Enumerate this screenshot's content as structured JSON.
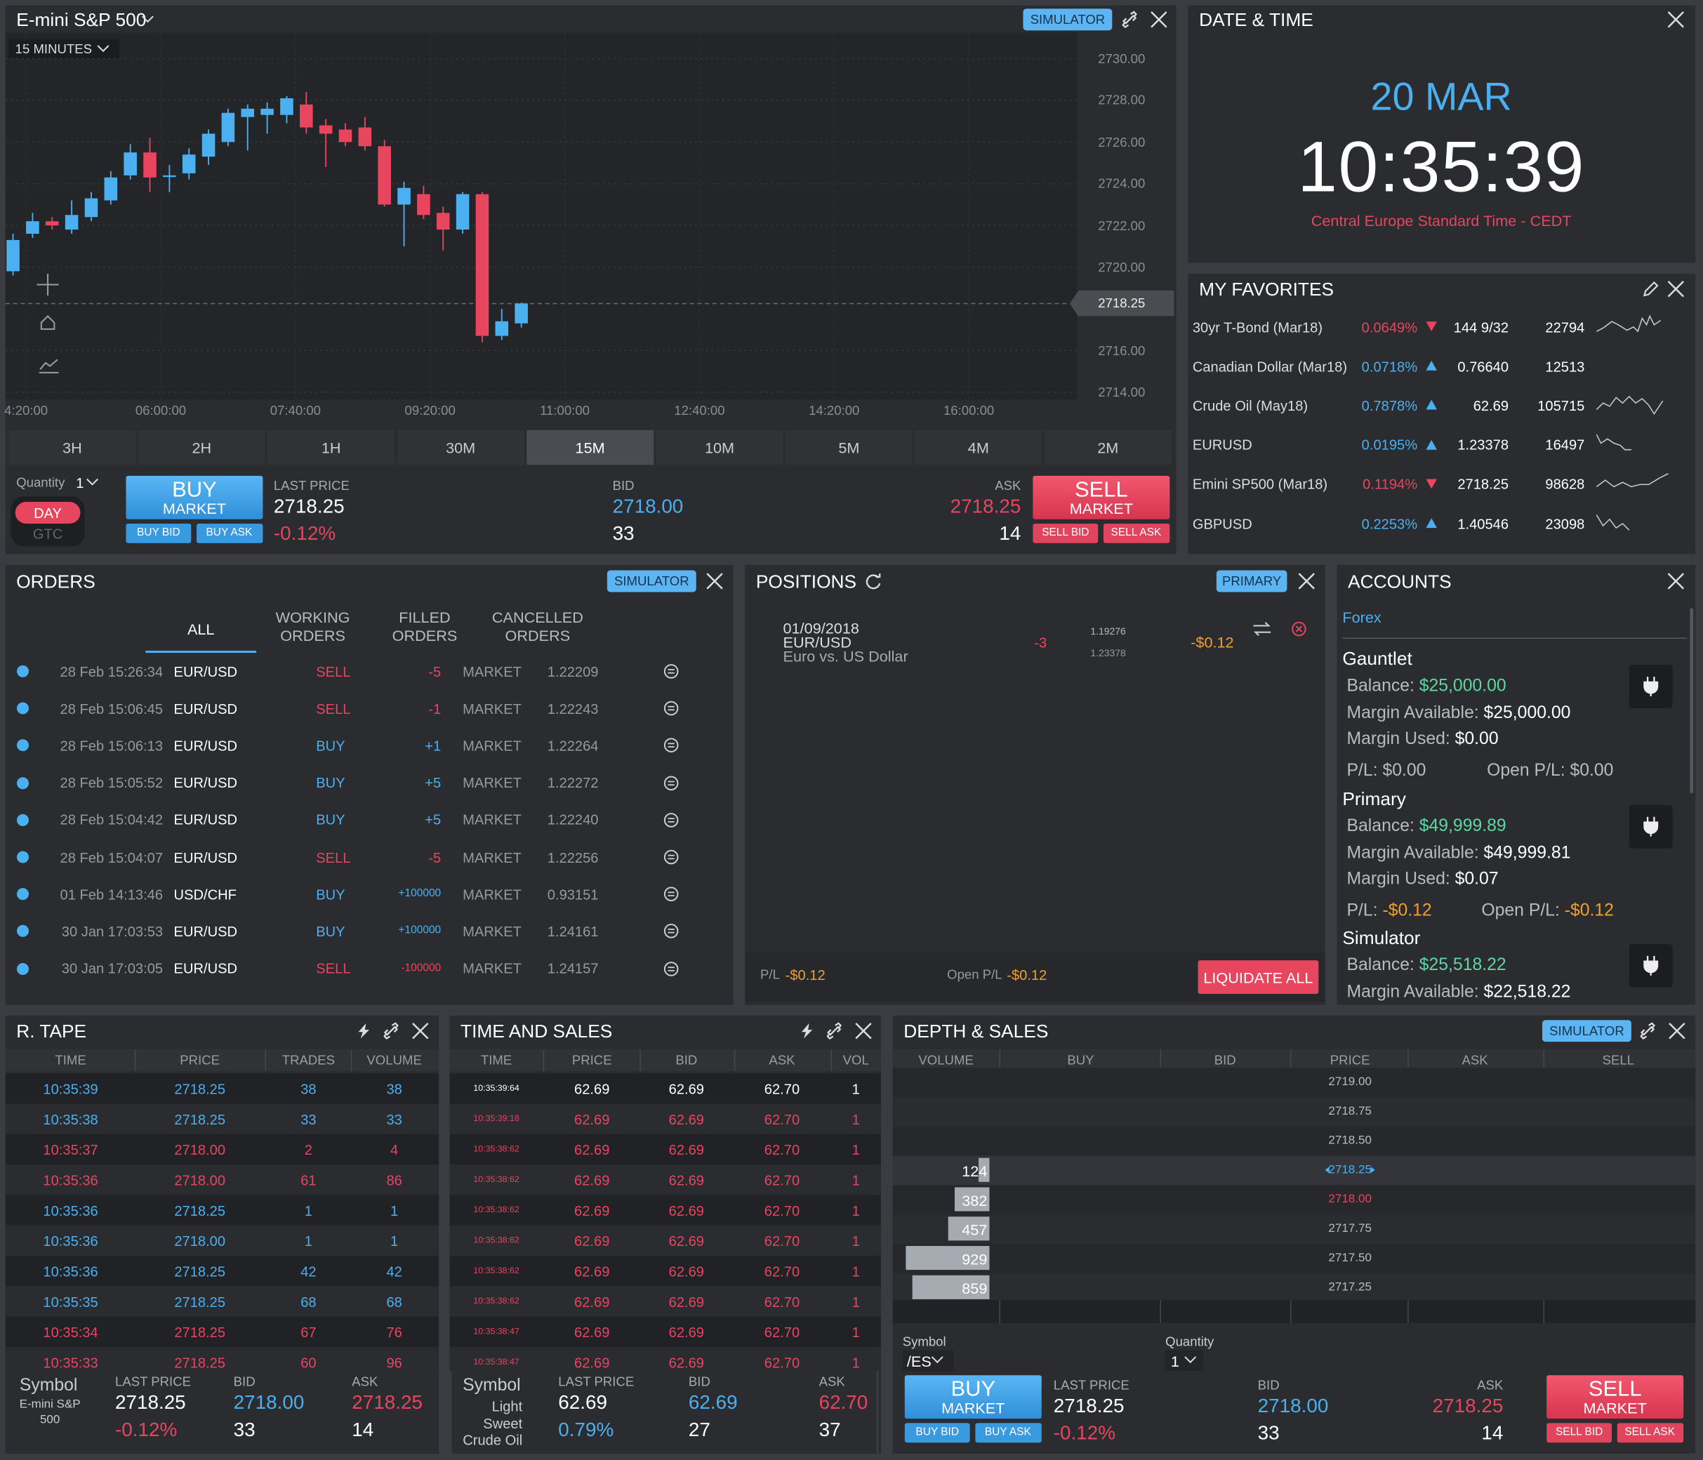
{
  "chart_panel": {
    "title": "E-mini S&P 500",
    "interval": "15 MINUTES",
    "badge": "SIMULATOR",
    "chart": {
      "type": "candlestick",
      "up_color": "#4ab0f0",
      "down_color": "#e8455f",
      "grid": true,
      "ylim": [
        2714,
        2730
      ],
      "yticks": [
        {
          "value": 2730,
          "label": "2730.00"
        },
        {
          "value": 2728,
          "label": "2728.00"
        },
        {
          "value": 2726,
          "label": "2726.00"
        },
        {
          "value": 2724,
          "label": "2724.00"
        },
        {
          "value": 2722,
          "label": "2722.00"
        },
        {
          "value": 2720,
          "label": "2720.00"
        },
        {
          "value": 2716,
          "label": "2716.00"
        },
        {
          "value": 2714,
          "label": "2714.00"
        }
      ],
      "last_price": {
        "value": 2718.25,
        "label": "2718.25"
      },
      "xticks": [
        "4:20:00",
        "06:00:00",
        "07:40:00",
        "09:20:00",
        "11:00:00",
        "12:40:00",
        "14:20:00",
        "16:00:00"
      ],
      "candles": [
        {
          "open": 2719.8,
          "high": 2721.6,
          "low": 2719.6,
          "close": 2721.3
        },
        {
          "open": 2721.6,
          "high": 2722.6,
          "low": 2721.4,
          "close": 2722.2
        },
        {
          "open": 2722.2,
          "high": 2722.4,
          "low": 2721.8,
          "close": 2722.0
        },
        {
          "open": 2721.8,
          "high": 2723.2,
          "low": 2721.6,
          "close": 2722.5
        },
        {
          "open": 2722.4,
          "high": 2723.6,
          "low": 2722.2,
          "close": 2723.3
        },
        {
          "open": 2723.2,
          "high": 2724.6,
          "low": 2723.0,
          "close": 2724.3
        },
        {
          "open": 2724.4,
          "high": 2725.9,
          "low": 2724.2,
          "close": 2725.5
        },
        {
          "open": 2725.5,
          "high": 2726.2,
          "low": 2723.6,
          "close": 2724.3
        },
        {
          "open": 2724.4,
          "high": 2724.9,
          "low": 2723.6,
          "close": 2724.4
        },
        {
          "open": 2724.5,
          "high": 2725.7,
          "low": 2724.2,
          "close": 2725.4
        },
        {
          "open": 2725.3,
          "high": 2726.6,
          "low": 2724.9,
          "close": 2726.4
        },
        {
          "open": 2726.0,
          "high": 2727.6,
          "low": 2725.8,
          "close": 2727.4
        },
        {
          "open": 2727.2,
          "high": 2727.8,
          "low": 2725.6,
          "close": 2727.6
        },
        {
          "open": 2727.3,
          "high": 2727.9,
          "low": 2726.4,
          "close": 2727.6
        },
        {
          "open": 2727.3,
          "high": 2728.2,
          "low": 2726.9,
          "close": 2728.1
        },
        {
          "open": 2727.8,
          "high": 2728.4,
          "low": 2726.4,
          "close": 2726.7
        },
        {
          "open": 2726.8,
          "high": 2727.1,
          "low": 2724.8,
          "close": 2726.4
        },
        {
          "open": 2726.6,
          "high": 2726.9,
          "low": 2725.8,
          "close": 2726.0
        },
        {
          "open": 2726.7,
          "high": 2727.2,
          "low": 2725.6,
          "close": 2725.8
        },
        {
          "open": 2725.8,
          "high": 2726.1,
          "low": 2722.9,
          "close": 2723.0
        },
        {
          "open": 2723.0,
          "high": 2724.1,
          "low": 2721.0,
          "close": 2723.8
        },
        {
          "open": 2723.5,
          "high": 2723.9,
          "low": 2722.3,
          "close": 2722.5
        },
        {
          "open": 2722.6,
          "high": 2722.9,
          "low": 2720.8,
          "close": 2721.8
        },
        {
          "open": 2721.8,
          "high": 2723.6,
          "low": 2721.6,
          "close": 2723.5
        },
        {
          "open": 2723.5,
          "high": 2723.6,
          "low": 2716.4,
          "close": 2716.7
        },
        {
          "open": 2716.7,
          "high": 2718.0,
          "low": 2716.5,
          "close": 2717.4
        },
        {
          "open": 2717.3,
          "high": 2718.3,
          "low": 2717.1,
          "close": 2718.25
        }
      ]
    },
    "timeframes": [
      "3H",
      "2H",
      "1H",
      "30M",
      "15M",
      "10M",
      "5M",
      "4M",
      "2M"
    ],
    "selected_timeframe": 4,
    "quantity_label": "Quantity",
    "quantity": "1",
    "tif": [
      "DAY",
      "GTC"
    ],
    "trade": {
      "buy": "BUY",
      "buy_type": "MARKET",
      "buy_bid": "BUY BID",
      "buy_ask": "BUY ASK",
      "last_price_label": "LAST PRICE",
      "last_price": "2718.25",
      "change": "-0.12%",
      "change_color": "#e8455f",
      "bid_label": "BID",
      "bid": "2718.00",
      "bid_size": "33",
      "ask_label": "ASK",
      "ask": "2718.25",
      "ask_size": "14",
      "sell": "SELL",
      "sell_type": "MARKET",
      "sell_bid": "SELL BID",
      "sell_ask": "SELL ASK"
    }
  },
  "date_time": {
    "title": "DATE & TIME",
    "date": "20 MAR",
    "time": "10:35:39",
    "timezone": "Central Europe Standard Time - CEDT"
  },
  "favorites": {
    "title": "MY FAVORITES",
    "rows": [
      {
        "name": "30yr T-Bond (Mar18)",
        "change": "0.0649%",
        "dir": "down",
        "price": "144 9/32",
        "volume": "22794"
      },
      {
        "name": "Canadian Dollar (Mar18)",
        "change": "0.0718%",
        "dir": "up",
        "price": "0.76640",
        "volume": "12513"
      },
      {
        "name": "Crude Oil (May18)",
        "change": "0.7878%",
        "dir": "up",
        "price": "62.69",
        "volume": "105715"
      },
      {
        "name": "EURUSD",
        "change": "0.0195%",
        "dir": "up",
        "price": "1.23378",
        "volume": "16497"
      },
      {
        "name": "Emini SP500 (Mar18)",
        "change": "0.1194%",
        "dir": "down",
        "price": "2718.25",
        "volume": "98628"
      },
      {
        "name": "GBPUSD",
        "change": "0.2253%",
        "dir": "up",
        "price": "1.40546",
        "volume": "23098"
      }
    ]
  },
  "orders": {
    "title": "ORDERS",
    "badge": "SIMULATOR",
    "tabs": [
      "ALL",
      "WORKING ORDERS",
      "FILLED ORDERS",
      "CANCELLED ORDERS"
    ],
    "selected_tab": 0,
    "rows": [
      {
        "time": "28 Feb 15:26:34",
        "symbol": "EUR/USD",
        "side": "SELL",
        "qty": "-5",
        "type": "MARKET",
        "price": "1.22209",
        "color": "#e8455f"
      },
      {
        "time": "28 Feb 15:06:45",
        "symbol": "EUR/USD",
        "side": "SELL",
        "qty": "-1",
        "type": "MARKET",
        "price": "1.22243",
        "color": "#e8455f"
      },
      {
        "time": "28 Feb 15:06:13",
        "symbol": "EUR/USD",
        "side": "BUY",
        "qty": "+1",
        "type": "MARKET",
        "price": "1.22264",
        "color": "#4ab0f0"
      },
      {
        "time": "28 Feb 15:05:52",
        "symbol": "EUR/USD",
        "side": "BUY",
        "qty": "+5",
        "type": "MARKET",
        "price": "1.22272",
        "color": "#4ab0f0"
      },
      {
        "time": "28 Feb 15:04:42",
        "symbol": "EUR/USD",
        "side": "BUY",
        "qty": "+5",
        "type": "MARKET",
        "price": "1.22240",
        "color": "#4ab0f0"
      },
      {
        "time": "28 Feb 15:04:07",
        "symbol": "EUR/USD",
        "side": "SELL",
        "qty": "-5",
        "type": "MARKET",
        "price": "1.22256",
        "color": "#e8455f"
      },
      {
        "time": "01 Feb 14:13:46",
        "symbol": "USD/CHF",
        "side": "BUY",
        "qty": "+100000",
        "type": "MARKET",
        "price": "0.93151",
        "color": "#4ab0f0"
      },
      {
        "time": "30 Jan 17:03:53",
        "symbol": "EUR/USD",
        "side": "BUY",
        "qty": "+100000",
        "type": "MARKET",
        "price": "1.24161",
        "color": "#4ab0f0"
      },
      {
        "time": "30 Jan 17:03:05",
        "symbol": "EUR/USD",
        "side": "SELL",
        "qty": "-100000",
        "type": "MARKET",
        "price": "1.24157",
        "color": "#e8455f"
      }
    ]
  },
  "positions": {
    "title": "POSITIONS",
    "badge": "PRIMARY",
    "row": {
      "date": "01/09/2018",
      "symbol": "EUR/USD",
      "description": "Euro vs. US Dollar",
      "qty": "-3",
      "open_price": "1.19276",
      "current_price": "1.23378",
      "pl": "-$0.12"
    },
    "footer": {
      "pl_label": "P/L",
      "pl": "-$0.12",
      "open_pl_label": "Open P/L",
      "open_pl": "-$0.12",
      "liquidate": "LIQUIDATE ALL"
    }
  },
  "accounts": {
    "title": "ACCOUNTS",
    "tab": "Forex",
    "list": [
      {
        "name": "Gauntlet",
        "fields": [
          {
            "label": "Balance:",
            "value": "$25,000.00",
            "color": "#5ed8a0"
          },
          {
            "label": "Margin Available:",
            "value": "$25,000.00",
            "color": "#ffffff"
          },
          {
            "label": "Margin Used:",
            "value": "$0.00",
            "color": "#ffffff"
          }
        ],
        "pl": {
          "label": "P/L:",
          "value": "$0.00",
          "color": "#bbbbbb"
        },
        "open_pl": {
          "label": "Open P/L:",
          "value": "$0.00",
          "color": "#bbbbbb"
        }
      },
      {
        "name": "Primary",
        "fields": [
          {
            "label": "Balance:",
            "value": "$49,999.89",
            "color": "#5ed8a0"
          },
          {
            "label": "Margin Available:",
            "value": "$49,999.81",
            "color": "#ffffff"
          },
          {
            "label": "Margin Used:",
            "value": "$0.07",
            "color": "#ffffff"
          }
        ],
        "pl": {
          "label": "P/L:",
          "value": "-$0.12",
          "color": "#f0a030"
        },
        "open_pl": {
          "label": "Open P/L:",
          "value": "-$0.12",
          "color": "#f0a030"
        }
      },
      {
        "name": "Simulator",
        "fields": [
          {
            "label": "Balance:",
            "value": "$25,518.22",
            "color": "#5ed8a0"
          },
          {
            "label": "Margin Available:",
            "value": "$22,518.22",
            "color": "#ffffff"
          }
        ]
      }
    ]
  },
  "r_tape": {
    "title": "R. TAPE",
    "columns": [
      "TIME",
      "PRICE",
      "TRADES",
      "VOLUME"
    ],
    "rows": [
      {
        "cells": [
          "10:35:39",
          "2718.25",
          "38",
          "38"
        ],
        "color": "#4ab0f0"
      },
      {
        "cells": [
          "10:35:38",
          "2718.25",
          "33",
          "33"
        ],
        "color": "#4ab0f0"
      },
      {
        "cells": [
          "10:35:37",
          "2718.00",
          "2",
          "4"
        ],
        "color": "#e8455f"
      },
      {
        "cells": [
          "10:35:36",
          "2718.00",
          "61",
          "86"
        ],
        "color": "#e8455f"
      },
      {
        "cells": [
          "10:35:36",
          "2718.25",
          "1",
          "1"
        ],
        "color": "#4ab0f0"
      },
      {
        "cells": [
          "10:35:36",
          "2718.00",
          "1",
          "1"
        ],
        "color": "#4ab0f0"
      },
      {
        "cells": [
          "10:35:36",
          "2718.25",
          "42",
          "42"
        ],
        "color": "#4ab0f0"
      },
      {
        "cells": [
          "10:35:35",
          "2718.25",
          "68",
          "68"
        ],
        "color": "#4ab0f0"
      },
      {
        "cells": [
          "10:35:34",
          "2718.25",
          "67",
          "76"
        ],
        "color": "#e8455f"
      },
      {
        "cells": [
          "10:35:33",
          "2718.25",
          "60",
          "96"
        ],
        "color": "#e8455f"
      }
    ],
    "footer": {
      "symbol_label": "Symbol",
      "symbol": "E-mini S&P 500",
      "last_price_label": "LAST PRICE",
      "last_price": "2718.25",
      "change": "-0.12%",
      "change_color": "#e8455f",
      "bid_label": "BID",
      "bid": "2718.00",
      "bid_size": "33",
      "ask_label": "ASK",
      "ask": "2718.25",
      "ask_size": "14"
    }
  },
  "time_sales": {
    "title": "TIME AND SALES",
    "columns": [
      "TIME",
      "PRICE",
      "BID",
      "ASK",
      "VOL"
    ],
    "rows": [
      {
        "cells": [
          "10:35:39:64",
          "62.69",
          "62.69",
          "62.70",
          "1"
        ],
        "color": "#ffffff"
      },
      {
        "cells": [
          "10:35:39:18",
          "62.69",
          "62.69",
          "62.70",
          "1"
        ],
        "color": "#e8455f"
      },
      {
        "cells": [
          "10:35:38:62",
          "62.69",
          "62.69",
          "62.70",
          "1"
        ],
        "color": "#e8455f"
      },
      {
        "cells": [
          "10:35:38:62",
          "62.69",
          "62.69",
          "62.70",
          "1"
        ],
        "color": "#e8455f"
      },
      {
        "cells": [
          "10:35:38:62",
          "62.69",
          "62.69",
          "62.70",
          "1"
        ],
        "color": "#e8455f"
      },
      {
        "cells": [
          "10:35:38:62",
          "62.69",
          "62.69",
          "62.70",
          "1"
        ],
        "color": "#e8455f"
      },
      {
        "cells": [
          "10:35:38:62",
          "62.69",
          "62.69",
          "62.70",
          "1"
        ],
        "color": "#e8455f"
      },
      {
        "cells": [
          "10:35:38:62",
          "62.69",
          "62.69",
          "62.70",
          "1"
        ],
        "color": "#e8455f"
      },
      {
        "cells": [
          "10:35:38:47",
          "62.69",
          "62.69",
          "62.70",
          "1"
        ],
        "color": "#e8455f"
      },
      {
        "cells": [
          "10:35:38:47",
          "62.69",
          "62.69",
          "62.70",
          "1"
        ],
        "color": "#e8455f"
      }
    ],
    "footer": {
      "symbol_label": "Symbol",
      "symbol": "Light Sweet Crude Oil",
      "last_price_label": "LAST PRICE",
      "last_price": "62.69",
      "change": "0.79%",
      "change_color": "#4ab0f0",
      "bid_label": "BID",
      "bid": "62.69",
      "bid_size": "27",
      "ask_label": "ASK",
      "ask": "62.70",
      "ask_size": "37"
    }
  },
  "depth": {
    "title": "DEPTH & SALES",
    "badge": "SIMULATOR",
    "columns": [
      "VOLUME",
      "BUY",
      "BID",
      "PRICE",
      "ASK",
      "SELL"
    ],
    "current_row": 3,
    "rows": [
      {
        "price": "2719.00",
        "color": "#bbbbbb"
      },
      {
        "price": "2718.75",
        "color": "#bbbbbb"
      },
      {
        "price": "2718.50",
        "color": "#bbbbbb"
      },
      {
        "price": "2718.25",
        "color": "#4ab0f0",
        "volume": 124
      },
      {
        "price": "2718.00",
        "color": "#e8455f",
        "volume": 382
      },
      {
        "price": "2717.75",
        "color": "#bbbbbb",
        "volume": 457
      },
      {
        "price": "2717.50",
        "color": "#bbbbbb",
        "volume": 929
      },
      {
        "price": "2717.25",
        "color": "#bbbbbb",
        "volume": 859
      }
    ],
    "symbol_label": "Symbol",
    "symbol": "/ES",
    "quantity_label": "Quantity",
    "quantity": "1",
    "trade": {
      "buy": "BUY",
      "buy_type": "MARKET",
      "buy_bid": "BUY BID",
      "buy_ask": "BUY ASK",
      "last_price_label": "LAST PRICE",
      "last_price": "2718.25",
      "change": "-0.12%",
      "change_color": "#e8455f",
      "bid_label": "BID",
      "bid": "2718.00",
      "bid_size": "33",
      "ask_label": "ASK",
      "ask": "2718.25",
      "ask_size": "14",
      "sell": "SELL",
      "sell_type": "MARKET",
      "sell_bid": "SELL BID",
      "sell_ask": "SELL ASK"
    }
  }
}
